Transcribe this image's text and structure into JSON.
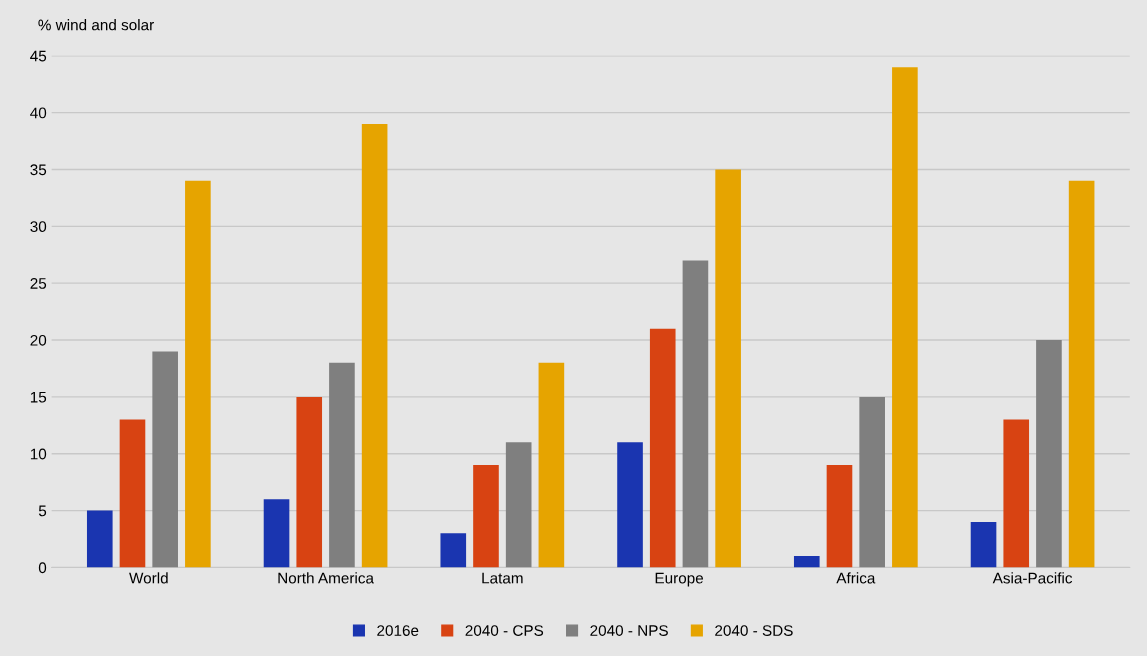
{
  "chart_data": {
    "type": "bar",
    "ylabel": "% wind and solar",
    "categories": [
      "World",
      "North America",
      "Latam",
      "Europe",
      "Africa",
      "Asia-Pacific"
    ],
    "series": [
      {
        "name": "2016e",
        "color": "#1a35b0",
        "values": [
          5,
          6,
          3,
          11,
          1,
          4
        ]
      },
      {
        "name": "2040 - CPS",
        "color": "#d84312",
        "values": [
          13,
          15,
          9,
          21,
          9,
          13
        ]
      },
      {
        "name": "2040 - NPS",
        "color": "#7f7f7f",
        "values": [
          19,
          18,
          11,
          27,
          15,
          20
        ]
      },
      {
        "name": "2040 - SDS",
        "color": "#e6a400",
        "values": [
          34,
          39,
          18,
          35,
          44,
          34
        ]
      }
    ],
    "ylim": [
      0,
      45
    ],
    "yticks": [
      0,
      5,
      10,
      15,
      20,
      25,
      30,
      35,
      40,
      45
    ],
    "grid": "y",
    "legend": "bottom"
  }
}
